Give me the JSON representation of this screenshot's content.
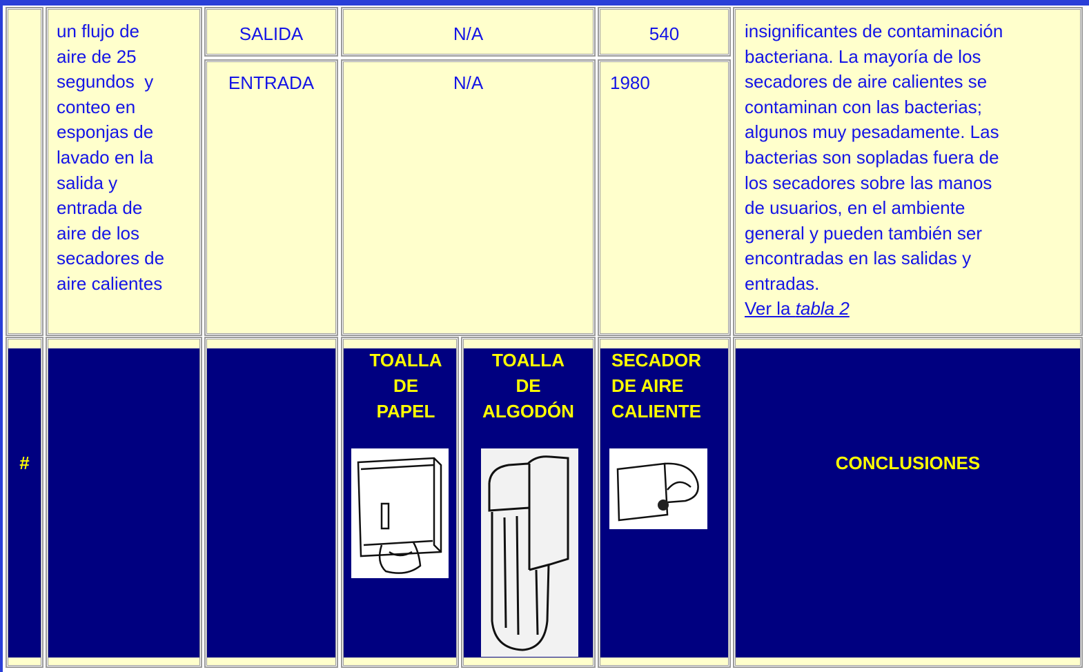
{
  "top_row": {
    "method_lines": [
      "un flujo de",
      "aire de 25",
      "segundos  y",
      "conteo en",
      "esponjas de",
      "lavado en la",
      "salida y",
      "entrada de",
      "aire de los",
      "secadores de",
      "aire calientes"
    ],
    "sites": [
      {
        "site": "SALIDA",
        "towels": "N/A",
        "dryer": 540
      },
      {
        "site": "ENTRADA",
        "towels": "N/A",
        "dryer": 1980
      }
    ],
    "conclusion_lines": [
      "insignificantes de contaminación",
      "bacteriana. La mayoría de los",
      "secadores de aire calientes se",
      "contaminan con las bacterias;",
      "algunos muy pesadamente. Las",
      "bacterias son sopladas fuera de",
      "los secadores sobre las manos",
      "de usuarios, en el ambiente",
      "general y pueden también ser",
      "encontradas en las salidas y",
      "entradas."
    ],
    "link_prefix": "Ver la",
    "link_text": "tabla 2"
  },
  "header_row": {
    "hash": "#",
    "columns": [
      [
        "TOALLA",
        "DE",
        "PAPEL"
      ],
      [
        "TOALLA",
        "DE",
        "ALGODÓN"
      ],
      [
        "SECADOR",
        "DE AIRE",
        "CALIENTE"
      ]
    ],
    "conclusions": "CONCLUSIONES"
  }
}
